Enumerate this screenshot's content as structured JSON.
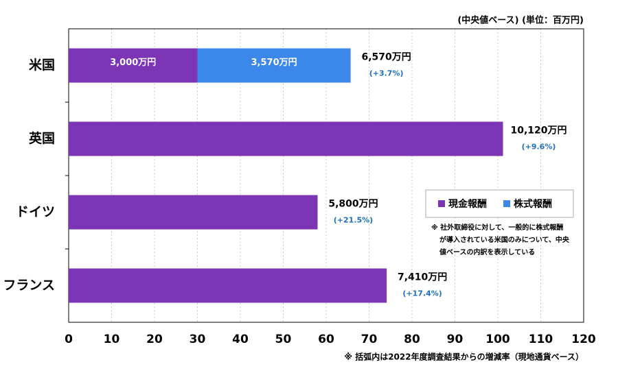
{
  "chart_data": {
    "type": "stacked_barh",
    "unit_label": "(中央値ベース) (単位：百万円)",
    "footnote": "※ 括弧内は2022年度調査結果からの増減率（現地通貨ベース）",
    "categories": [
      "米国",
      "英国",
      "ドイツ",
      "フランス"
    ],
    "series": [
      {
        "name": "現金報酬",
        "color": "#7b35b5",
        "values": [
          30,
          101.2,
          58,
          74.1
        ],
        "value_labels": [
          "3,000万円",
          "10,120万円",
          "5,800万円",
          "7,410万円"
        ]
      },
      {
        "name": "株式報酬",
        "color": "#3b87ea",
        "values": [
          35.7,
          null,
          null,
          null
        ],
        "value_labels": [
          "3,570万円",
          null,
          null,
          null
        ]
      }
    ],
    "total_labels": [
      "6,570万円",
      null,
      null,
      null
    ],
    "change_labels": [
      "(+3.7%)",
      "(+9.6%)",
      "(+21.5%)",
      "(+17.4%)"
    ],
    "note": [
      "※ 社外取締役に対して、一般的に株式報酬",
      "が導入されている米国のみについて、中央",
      "値ベースの内訳を表示している"
    ],
    "xlim": [
      0,
      120
    ],
    "xticks": [
      0,
      10,
      20,
      30,
      40,
      50,
      60,
      70,
      80,
      90,
      100,
      110,
      120
    ],
    "grid": true,
    "legend": "right"
  }
}
